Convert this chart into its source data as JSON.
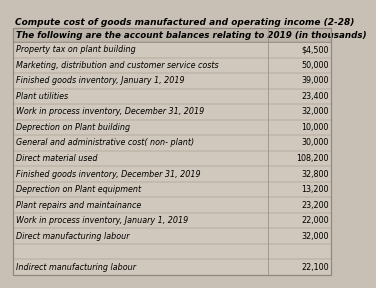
{
  "title": "Compute cost of goods manufactured and operating income (2-28)",
  "header": "The following are the account balances relating to 2019 (in thousands)",
  "rows": [
    [
      "Property tax on plant building",
      "$4,500"
    ],
    [
      "Marketing, distribution and customer service costs",
      "50,000"
    ],
    [
      "Finished goods inventory, January 1, 2019",
      "39,000"
    ],
    [
      "Plant utilities",
      "23,400"
    ],
    [
      "Work in process inventory, December 31, 2019",
      "32,000"
    ],
    [
      "Deprection on Plant building",
      "10,000"
    ],
    [
      "General and administrative cost( non- plant)",
      "30,000"
    ],
    [
      "Direct material used",
      "108,200"
    ],
    [
      "Finished goods inventory, December 31, 2019",
      "32,800"
    ],
    [
      "Deprection on Plant equipment",
      "13,200"
    ],
    [
      "Plant repairs and maintainance",
      "23,200"
    ],
    [
      "Work in process inventory, January 1, 2019",
      "22,000"
    ],
    [
      "Direct manufacturing labour",
      "32,000"
    ],
    [
      "",
      ""
    ],
    [
      "Indirect manufacturing labour",
      "22,100"
    ]
  ],
  "bg_color": "#c8c0b4",
  "table_bg": "#d0c8bc",
  "header_bg": "#bdb5a9",
  "border_color": "#908880",
  "title_color": "#000000",
  "text_color": "#000000",
  "title_fontsize": 6.5,
  "header_fontsize": 6.3,
  "row_fontsize": 5.8
}
